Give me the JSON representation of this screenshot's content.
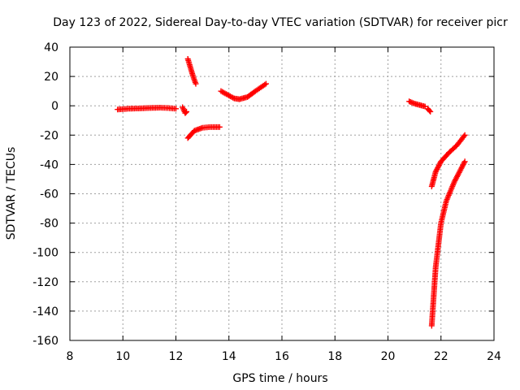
{
  "chart_data": {
    "type": "scatter",
    "title": "Day 123 of 2022, Sidereal Day-to-day VTEC variation (SDTVAR) for receiver picr",
    "xlabel": "GPS time / hours",
    "ylabel": "SDTVAR / TECUs",
    "xlim": [
      8,
      24
    ],
    "ylim": [
      -160,
      40
    ],
    "xticks": [
      8,
      10,
      12,
      14,
      16,
      18,
      20,
      22,
      24
    ],
    "yticks": [
      -160,
      -140,
      -120,
      -100,
      -80,
      -60,
      -40,
      -20,
      0,
      20,
      40
    ],
    "grid": true,
    "marker": "+",
    "series_color": "#ff0000",
    "segments": [
      {
        "x": [
          9.8,
          10.2,
          10.6,
          11.0,
          11.4,
          11.7,
          12.0
        ],
        "y": [
          -2.5,
          -2,
          -1.8,
          -1.5,
          -1.3,
          -1.5,
          -2
        ]
      },
      {
        "x": [
          12.25,
          12.3,
          12.35,
          12.4
        ],
        "y": [
          -1,
          -3,
          -5,
          -4
        ]
      },
      {
        "x": [
          12.45,
          12.55,
          12.65,
          12.75
        ],
        "y": [
          32,
          26,
          20,
          15
        ]
      },
      {
        "x": [
          12.45,
          12.7,
          13.0,
          13.3,
          13.65
        ],
        "y": [
          -22,
          -17,
          -15,
          -14.5,
          -14.5
        ]
      },
      {
        "x": [
          13.7,
          14.0,
          14.2,
          14.4,
          14.7,
          15.0,
          15.4
        ],
        "y": [
          10,
          7,
          5,
          4.5,
          6,
          10,
          15
        ]
      },
      {
        "x": [
          20.8,
          21.0,
          21.2,
          21.4
        ],
        "y": [
          3,
          1.5,
          0.5,
          -0.5
        ]
      },
      {
        "x": [
          21.5,
          21.6
        ],
        "y": [
          -2,
          -4
        ]
      },
      {
        "x": [
          21.65,
          21.8,
          22.0,
          22.3,
          22.6,
          22.9
        ],
        "y": [
          -55,
          -45,
          -38,
          -32,
          -27,
          -20
        ]
      },
      {
        "x": [
          21.65,
          21.8,
          22.0,
          22.2,
          22.5,
          22.9
        ],
        "y": [
          -150,
          -110,
          -80,
          -65,
          -52,
          -38
        ]
      }
    ]
  }
}
